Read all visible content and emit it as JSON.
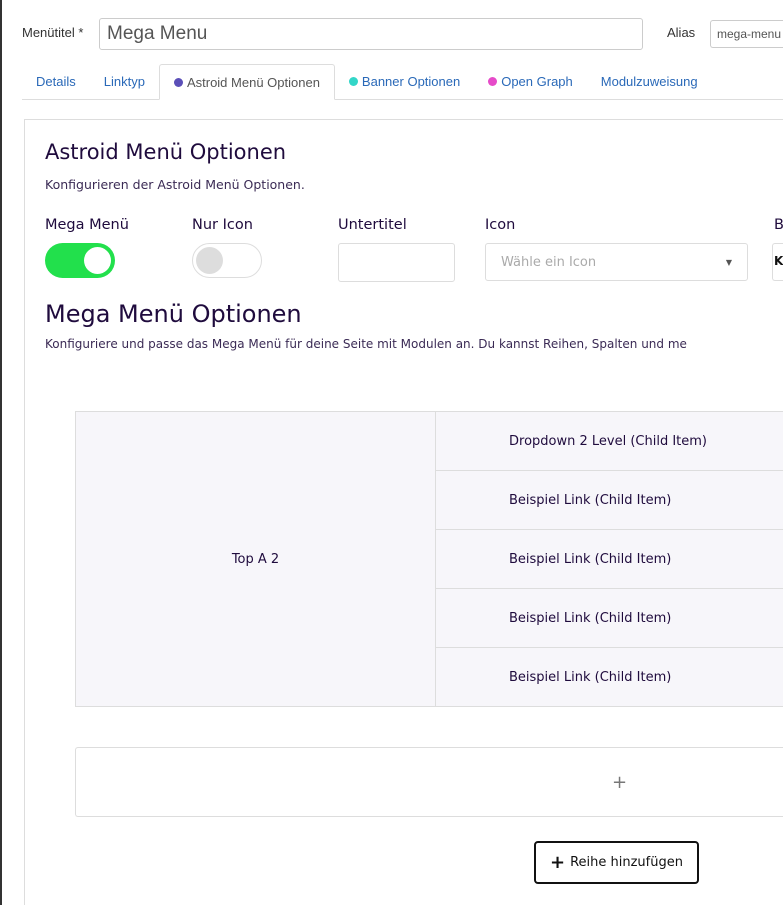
{
  "header": {
    "title_label": "Menütitel *",
    "title_value": "Mega Menu",
    "alias_label": "Alias",
    "alias_value": "mega-menu"
  },
  "tabs": [
    {
      "label": "Details"
    },
    {
      "label": "Linktyp"
    },
    {
      "label": "Astroid Menü Optionen",
      "dot": "#5b4fb8"
    },
    {
      "label": "Banner Optionen",
      "dot": "#33d6c8"
    },
    {
      "label": "Open Graph",
      "dot": "#e64bc9"
    },
    {
      "label": "Modulzuweisung"
    }
  ],
  "astroid": {
    "title": "Astroid Menü Optionen",
    "subtitle": "Konfigurieren der Astroid Menü Optionen.",
    "mega_label": "Mega Menü",
    "mega_on": true,
    "icononly_label": "Nur Icon",
    "icononly_on": false,
    "untertitel_label": "Untertitel",
    "untertitel_value": "",
    "icon_label": "Icon",
    "icon_placeholder": "Wähle ein Icon",
    "cut_label": "B",
    "cut_value": "K"
  },
  "mega": {
    "title": "Mega Menü Optionen",
    "subtitle": "Konfiguriere und passe das Mega Menü für deine Seite mit Modulen an. Du kannst Reihen, Spalten und me",
    "parent": "Top A 2",
    "children": [
      "Dropdown 2 Level (Child Item)",
      "Beispiel Link (Child Item)",
      "Beispiel Link (Child Item)",
      "Beispiel Link (Child Item)",
      "Beispiel Link (Child Item)"
    ],
    "add_symbol": "+",
    "add_row_label": "Reihe hinzufügen"
  },
  "colors": {
    "toggle_on": "#22e04c",
    "heading": "#1f0b3d",
    "link": "#2a69b8"
  }
}
